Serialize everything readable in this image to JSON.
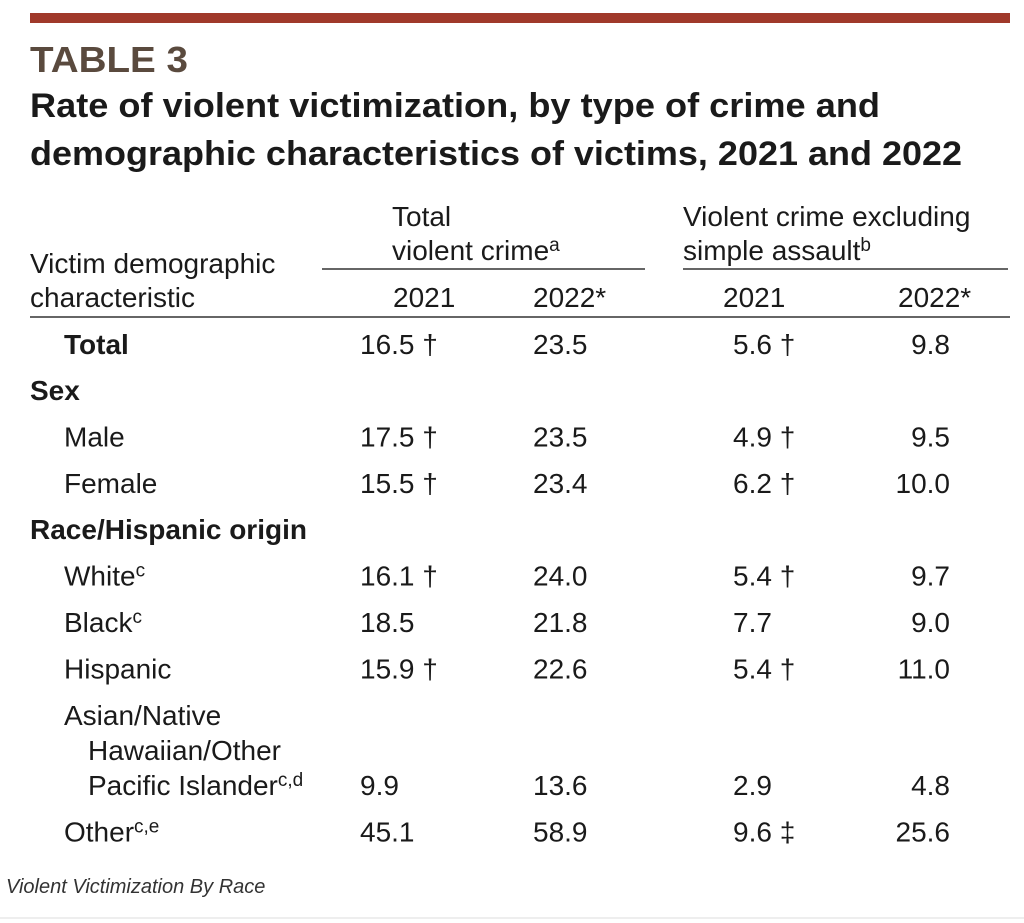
{
  "header": {
    "label": "TABLE 3",
    "title": [
      "Rate of violent victimization, by type of crime and",
      "demographic characteristics of victims, 2021 and 2022"
    ]
  },
  "table": {
    "stub_head": [
      "Victim demographic",
      "characteristic"
    ],
    "column_groups": [
      {
        "title": [
          "Total",
          "violent crime"
        ],
        "note": "a",
        "years": [
          "2021",
          "2022*"
        ]
      },
      {
        "title": [
          "Violent crime excluding",
          "simple assault"
        ],
        "note": "b",
        "years": [
          "2021",
          "2022*"
        ]
      }
    ],
    "total": {
      "label": "Total",
      "cells": [
        "16.5 †",
        "23.5",
        "5.6 †",
        "9.8"
      ]
    },
    "groups": [
      {
        "title": "Sex",
        "rows": [
          {
            "label": "Male",
            "cells": [
              "17.5 †",
              "23.5",
              "4.9 †",
              "9.5"
            ]
          },
          {
            "label": "Female",
            "cells": [
              "15.5 †",
              "23.4",
              "6.2 †",
              "10.0"
            ]
          }
        ]
      },
      {
        "title": "Race/Hispanic origin",
        "rows": [
          {
            "label": "White",
            "note": "c",
            "cells": [
              "16.1 †",
              "24.0",
              "5.4 †",
              "9.7"
            ]
          },
          {
            "label": "Black",
            "note": "c",
            "cells": [
              "18.5",
              "21.8",
              "7.7",
              "9.0"
            ]
          },
          {
            "label": "Hispanic",
            "cells": [
              "15.9 †",
              "22.6",
              "5.4 †",
              "11.0"
            ]
          },
          {
            "label": [
              "Asian/Native",
              "Hawaiian/Other",
              "Pacific Islander"
            ],
            "note": "c,d",
            "cells": [
              "9.9",
              "13.6",
              "2.9",
              "4.8"
            ]
          },
          {
            "label": "Other",
            "note": "c,e",
            "cells": [
              "45.1",
              "58.9",
              "9.6 ‡",
              "25.6"
            ]
          }
        ]
      }
    ]
  },
  "caption": "Violent Victimization By Race"
}
